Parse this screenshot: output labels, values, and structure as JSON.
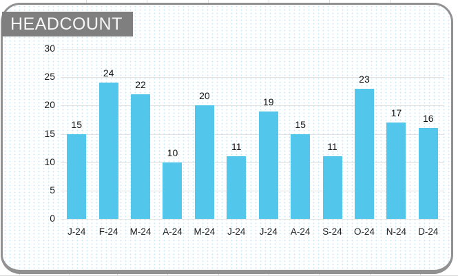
{
  "window": {
    "description_label": "Embedded spreadsheet bar chart object"
  },
  "chart_data": {
    "type": "bar",
    "title": "HEADCOUNT",
    "categories": [
      "J-24",
      "F-24",
      "M-24",
      "A-24",
      "M-24",
      "J-24",
      "J-24",
      "A-24",
      "S-24",
      "O-24",
      "N-24",
      "D-24"
    ],
    "values": [
      15,
      24,
      22,
      10,
      20,
      11,
      19,
      15,
      11,
      23,
      17,
      16
    ],
    "xlabel": "",
    "ylabel": "",
    "ylim": [
      0,
      30
    ],
    "yticks": [
      0,
      5,
      10,
      15,
      20,
      25,
      30
    ],
    "grid": "horizontal",
    "legend": "none",
    "data_labels": true
  },
  "colors": {
    "bar_fill": "#53c6ec",
    "title_background": "#7f7f7f",
    "title_text": "#f7f7f7",
    "gridline": "#e2e2e2",
    "card_border": "#919191",
    "dot_pattern": "#c9eaf7",
    "label_text": "#1f1f1f"
  }
}
